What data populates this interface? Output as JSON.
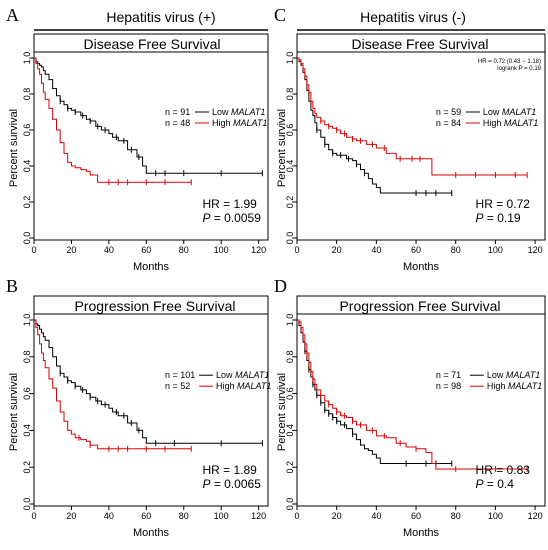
{
  "figure": {
    "col_headers": [
      "Hepatitis virus (+)",
      "Hepatitis virus (-)"
    ],
    "panel_letters": [
      "A",
      "C",
      "B",
      "D"
    ],
    "gene": "MALAT1"
  },
  "chart_data": [
    {
      "type": "line",
      "id": "A",
      "title": "Disease Free Survival",
      "xlabel": "Months",
      "ylabel": "Percent survival",
      "xlim": [
        0,
        125
      ],
      "ylim": [
        0,
        1.0
      ],
      "xticks": [
        0,
        20,
        40,
        60,
        80,
        100,
        120
      ],
      "yticks": [
        0.0,
        0.2,
        0.4,
        0.6,
        0.8,
        1.0
      ],
      "legend_position": "right",
      "series": [
        {
          "name": "Low MALAT1",
          "n_label": "n = 91",
          "color": "#000000",
          "x": [
            0,
            1,
            2,
            3,
            4,
            5,
            6,
            8,
            10,
            12,
            14,
            16,
            18,
            20,
            22,
            25,
            28,
            30,
            33,
            36,
            40,
            42,
            45,
            50,
            55,
            58,
            60,
            65,
            70,
            80,
            100,
            122
          ],
          "y": [
            1.0,
            0.98,
            0.97,
            0.96,
            0.95,
            0.93,
            0.91,
            0.88,
            0.83,
            0.79,
            0.76,
            0.74,
            0.72,
            0.71,
            0.7,
            0.68,
            0.66,
            0.65,
            0.62,
            0.6,
            0.58,
            0.56,
            0.54,
            0.49,
            0.45,
            0.4,
            0.36,
            0.36,
            0.36,
            0.36,
            0.36,
            0.36
          ],
          "censor_x": [
            14,
            18,
            22,
            26,
            30,
            34,
            38,
            44,
            48,
            52,
            56,
            65,
            70,
            80,
            100,
            122
          ]
        },
        {
          "name": "High MALAT1",
          "n_label": "n = 48",
          "color": "#e00000",
          "x": [
            0,
            1,
            2,
            3,
            4,
            5,
            6,
            8,
            10,
            12,
            14,
            16,
            18,
            20,
            22,
            25,
            28,
            30,
            34,
            40,
            50,
            60,
            70,
            84
          ],
          "y": [
            1.0,
            0.97,
            0.94,
            0.91,
            0.86,
            0.81,
            0.77,
            0.72,
            0.66,
            0.6,
            0.53,
            0.47,
            0.42,
            0.4,
            0.39,
            0.38,
            0.37,
            0.35,
            0.31,
            0.31,
            0.31,
            0.31,
            0.31,
            0.31
          ],
          "censor_x": [
            40,
            45,
            50,
            60,
            70,
            84
          ]
        }
      ],
      "annotations": {
        "hr": "HR = 1.99",
        "p_label": "P",
        "p_value": " = 0.0059"
      }
    },
    {
      "type": "line",
      "id": "C",
      "title": "Disease Free Survival",
      "xlabel": "Months",
      "ylabel": "Percent survival",
      "xlim": [
        0,
        125
      ],
      "ylim": [
        0,
        1.0
      ],
      "xticks": [
        0,
        20,
        40,
        60,
        80,
        100,
        120
      ],
      "yticks": [
        0.0,
        0.2,
        0.4,
        0.6,
        0.8,
        1.0
      ],
      "legend_position": "right",
      "series": [
        {
          "name": "Low MALAT1",
          "n_label": "n = 59",
          "color": "#000000",
          "x": [
            0,
            1,
            2,
            3,
            4,
            5,
            6,
            7,
            8,
            9,
            10,
            12,
            14,
            16,
            18,
            20,
            22,
            25,
            28,
            30,
            32,
            34,
            36,
            38,
            40,
            42,
            50,
            60,
            70,
            78
          ],
          "y": [
            1.0,
            0.98,
            0.96,
            0.92,
            0.88,
            0.82,
            0.76,
            0.71,
            0.68,
            0.64,
            0.6,
            0.56,
            0.52,
            0.49,
            0.47,
            0.46,
            0.46,
            0.44,
            0.43,
            0.41,
            0.38,
            0.36,
            0.33,
            0.3,
            0.28,
            0.25,
            0.25,
            0.25,
            0.25,
            0.25
          ],
          "censor_x": [
            10,
            14,
            18,
            22,
            26,
            30,
            34,
            60,
            65,
            70,
            78
          ]
        },
        {
          "name": "High MALAT1",
          "n_label": "n = 84",
          "color": "#e00000",
          "x": [
            0,
            1,
            2,
            3,
            4,
            5,
            6,
            7,
            8,
            9,
            10,
            12,
            14,
            16,
            18,
            20,
            22,
            25,
            28,
            30,
            35,
            40,
            45,
            50,
            55,
            60,
            65,
            68,
            80,
            100,
            116
          ],
          "y": [
            1.0,
            0.99,
            0.97,
            0.94,
            0.9,
            0.85,
            0.81,
            0.76,
            0.72,
            0.69,
            0.67,
            0.65,
            0.63,
            0.62,
            0.61,
            0.6,
            0.58,
            0.56,
            0.55,
            0.54,
            0.52,
            0.5,
            0.47,
            0.44,
            0.44,
            0.44,
            0.44,
            0.35,
            0.35,
            0.35,
            0.35
          ],
          "censor_x": [
            12,
            16,
            20,
            24,
            28,
            32,
            38,
            44,
            52,
            58,
            62,
            80,
            90,
            100,
            110,
            116
          ]
        }
      ],
      "annotations": {
        "hr": "HR = 0.72",
        "p_label": "P",
        "p_value": " = 0.19",
        "small_hr": "HR = 0.72 (0.43 − 1.18)",
        "small_logrank": "logrank P = 0.19"
      }
    },
    {
      "type": "line",
      "id": "B",
      "title": "Progression Free Survival",
      "xlabel": "Months",
      "ylabel": "Percent survival",
      "xlim": [
        0,
        125
      ],
      "ylim": [
        0,
        1.0
      ],
      "xticks": [
        0,
        20,
        40,
        60,
        80,
        100,
        120
      ],
      "yticks": [
        0.0,
        0.2,
        0.4,
        0.6,
        0.8,
        1.0
      ],
      "legend_position": "right",
      "series": [
        {
          "name": "Low MALAT1",
          "n_label": "n = 101",
          "color": "#000000",
          "x": [
            0,
            1,
            2,
            3,
            4,
            5,
            6,
            8,
            10,
            12,
            14,
            16,
            18,
            20,
            22,
            25,
            28,
            30,
            33,
            36,
            40,
            42,
            45,
            50,
            55,
            58,
            60,
            65,
            70,
            80,
            100,
            122
          ],
          "y": [
            1.0,
            0.98,
            0.97,
            0.95,
            0.93,
            0.91,
            0.89,
            0.85,
            0.8,
            0.75,
            0.71,
            0.69,
            0.67,
            0.66,
            0.64,
            0.62,
            0.6,
            0.58,
            0.56,
            0.54,
            0.52,
            0.5,
            0.48,
            0.44,
            0.4,
            0.36,
            0.33,
            0.33,
            0.33,
            0.33,
            0.33,
            0.33
          ],
          "censor_x": [
            14,
            18,
            22,
            26,
            30,
            34,
            38,
            44,
            48,
            52,
            56,
            65,
            75,
            100,
            122
          ]
        },
        {
          "name": "High MALAT1",
          "n_label": "n = 52",
          "color": "#e00000",
          "x": [
            0,
            1,
            2,
            3,
            4,
            5,
            6,
            8,
            10,
            12,
            14,
            16,
            18,
            20,
            22,
            25,
            28,
            30,
            34,
            40,
            50,
            60,
            70,
            84
          ],
          "y": [
            1.0,
            0.96,
            0.92,
            0.87,
            0.82,
            0.78,
            0.74,
            0.68,
            0.63,
            0.56,
            0.5,
            0.45,
            0.4,
            0.38,
            0.36,
            0.35,
            0.34,
            0.32,
            0.3,
            0.3,
            0.3,
            0.3,
            0.3,
            0.3
          ],
          "censor_x": [
            24,
            30,
            40,
            45,
            50,
            60,
            70,
            84
          ]
        }
      ],
      "annotations": {
        "hr": "HR = 1.89",
        "p_label": "P",
        "p_value": " = 0.0065"
      }
    },
    {
      "type": "line",
      "id": "D",
      "title": "Progression Free Survival",
      "xlabel": "Months",
      "ylabel": "Percent survival",
      "xlim": [
        0,
        125
      ],
      "ylim": [
        0,
        1.0
      ],
      "xticks": [
        0,
        20,
        40,
        60,
        80,
        100,
        120
      ],
      "yticks": [
        0.0,
        0.2,
        0.4,
        0.6,
        0.8,
        1.0
      ],
      "legend_position": "right",
      "series": [
        {
          "name": "Low MALAT1",
          "n_label": "n = 71",
          "color": "#000000",
          "x": [
            0,
            1,
            2,
            3,
            4,
            5,
            6,
            7,
            8,
            9,
            10,
            12,
            14,
            16,
            18,
            20,
            22,
            25,
            28,
            30,
            32,
            34,
            36,
            38,
            40,
            42,
            50,
            60,
            70,
            78
          ],
          "y": [
            1.0,
            0.97,
            0.93,
            0.88,
            0.83,
            0.78,
            0.73,
            0.69,
            0.65,
            0.62,
            0.59,
            0.55,
            0.51,
            0.49,
            0.47,
            0.45,
            0.43,
            0.41,
            0.38,
            0.35,
            0.32,
            0.3,
            0.29,
            0.27,
            0.25,
            0.22,
            0.22,
            0.22,
            0.22,
            0.22
          ],
          "censor_x": [
            4,
            6,
            8,
            10,
            12,
            14,
            16,
            18,
            20,
            24,
            28,
            55,
            65,
            70,
            78
          ]
        },
        {
          "name": "High MALAT1",
          "n_label": "n = 98",
          "color": "#e00000",
          "x": [
            0,
            1,
            2,
            3,
            4,
            5,
            6,
            7,
            8,
            9,
            10,
            12,
            14,
            16,
            18,
            20,
            22,
            25,
            28,
            30,
            35,
            40,
            45,
            50,
            55,
            60,
            65,
            68,
            70,
            80,
            100,
            116
          ],
          "y": [
            1.0,
            0.99,
            0.96,
            0.92,
            0.87,
            0.82,
            0.77,
            0.72,
            0.68,
            0.65,
            0.62,
            0.59,
            0.56,
            0.54,
            0.52,
            0.5,
            0.48,
            0.47,
            0.45,
            0.43,
            0.4,
            0.37,
            0.36,
            0.33,
            0.31,
            0.3,
            0.28,
            0.22,
            0.19,
            0.19,
            0.19,
            0.19
          ],
          "censor_x": [
            5,
            8,
            12,
            16,
            20,
            24,
            28,
            32,
            38,
            44,
            52,
            60,
            80,
            100,
            116
          ]
        }
      ],
      "annotations": {
        "hr": "HR = 0.83",
        "p_label": "P",
        "p_value": " = 0.4"
      }
    }
  ]
}
